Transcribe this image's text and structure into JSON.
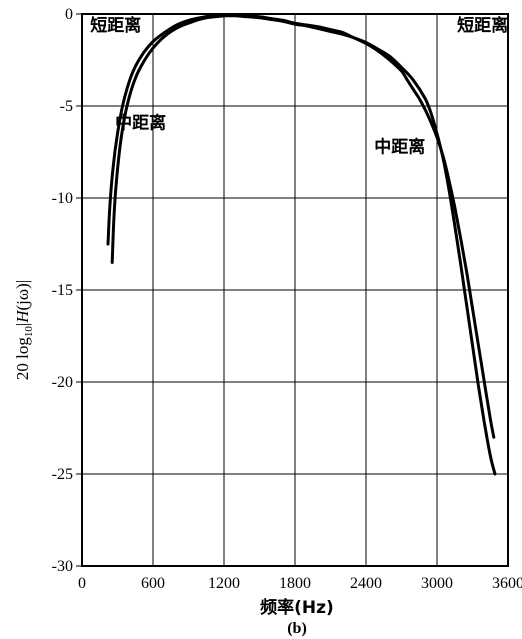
{
  "chart_data": {
    "type": "line",
    "title": "",
    "caption": "(b)",
    "xlabel": "频率(Hz)",
    "ylabel": "20 log10|H(jω)|",
    "ylabel_parts": {
      "pre": "20 log",
      "sub": "10",
      "mid": "|",
      "italic": "H",
      "post": "(jω)|"
    },
    "xlim": [
      0,
      3600
    ],
    "ylim": [
      -30,
      0
    ],
    "x_ticks": [
      0,
      600,
      1200,
      1800,
      2400,
      3000,
      3600
    ],
    "x_tick_labels": [
      "0",
      "600",
      "1200",
      "1800",
      "2400",
      "3000",
      "3600"
    ],
    "y_ticks": [
      0,
      -5,
      -10,
      -15,
      -20,
      -25,
      -30
    ],
    "y_tick_labels": [
      "0",
      "-5",
      "-10",
      "-15",
      "-20",
      "-25",
      "-30"
    ],
    "grid": true,
    "series": [
      {
        "x": [
          220,
          235,
          260,
          300,
          350,
          420,
          500,
          600,
          700,
          800,
          900,
          1000,
          1100,
          1200,
          1300,
          1400,
          1500,
          1600,
          1700,
          1800,
          1900,
          2000,
          2100,
          2200,
          2300,
          2400,
          2500,
          2600,
          2700,
          2750,
          2800,
          2850,
          2900,
          2950,
          3000,
          3050,
          3100,
          3150,
          3200,
          3250,
          3300,
          3350,
          3400,
          3450,
          3480
        ],
        "y": [
          -12.5,
          -10.5,
          -8.5,
          -6.5,
          -4.8,
          -3.3,
          -2.3,
          -1.5,
          -1.0,
          -0.6,
          -0.35,
          -0.2,
          -0.1,
          -0.05,
          -0.05,
          -0.1,
          -0.15,
          -0.25,
          -0.35,
          -0.5,
          -0.6,
          -0.7,
          -0.85,
          -1.0,
          -1.3,
          -1.6,
          -2.0,
          -2.5,
          -3.1,
          -3.6,
          -4.1,
          -4.6,
          -5.2,
          -5.9,
          -6.7,
          -7.7,
          -9.0,
          -10.5,
          -12.2,
          -14.0,
          -16.0,
          -18.0,
          -20.0,
          -22.0,
          -23.0
        ]
      },
      {
        "x": [
          255,
          270,
          295,
          330,
          380,
          450,
          530,
          620,
          720,
          820,
          920,
          1020,
          1120,
          1220,
          1300,
          1400,
          1500,
          1600,
          1700,
          1800,
          1900,
          2000,
          2100,
          2200,
          2300,
          2400,
          2500,
          2600,
          2700,
          2800,
          2900,
          2950,
          3000,
          3050,
          3100,
          3150,
          3200,
          3250,
          3300,
          3350,
          3400,
          3450,
          3490
        ],
        "y": [
          -13.5,
          -11.0,
          -8.8,
          -6.8,
          -5.0,
          -3.5,
          -2.5,
          -1.7,
          -1.1,
          -0.7,
          -0.45,
          -0.25,
          -0.15,
          -0.1,
          -0.1,
          -0.15,
          -0.2,
          -0.3,
          -0.4,
          -0.55,
          -0.65,
          -0.8,
          -0.95,
          -1.1,
          -1.3,
          -1.55,
          -1.9,
          -2.3,
          -2.9,
          -3.6,
          -4.6,
          -5.4,
          -6.5,
          -7.8,
          -9.5,
          -11.5,
          -13.6,
          -15.8,
          -18.0,
          -20.2,
          -22.2,
          -24.0,
          -25.0
        ]
      }
    ],
    "annotations": [
      {
        "text": "短距离",
        "x": 70,
        "y": -0.6,
        "anchor": "start"
      },
      {
        "text": "中距离",
        "x": 280,
        "y": -5.9,
        "anchor": "start"
      },
      {
        "text": "中距离",
        "x": 2470,
        "y": -7.2,
        "anchor": "start"
      },
      {
        "text": "短距离",
        "x": 3170,
        "y": -0.6,
        "anchor": "start"
      }
    ]
  }
}
